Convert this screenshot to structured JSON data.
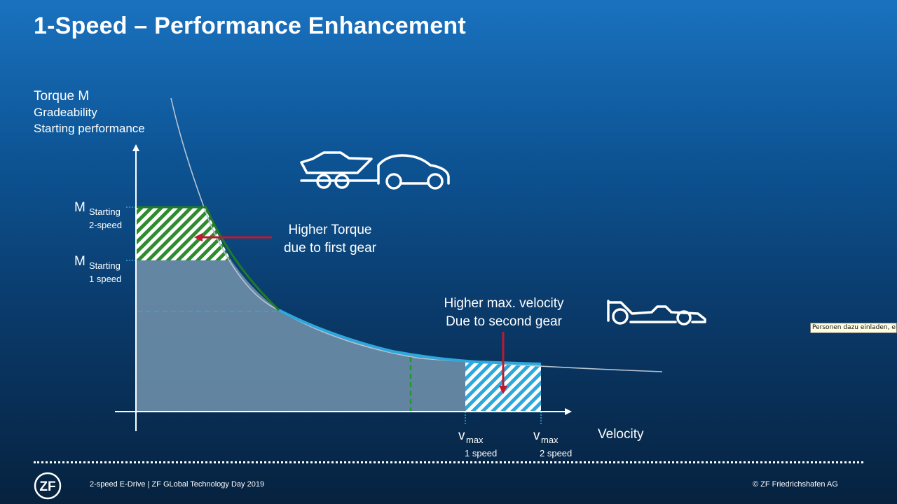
{
  "slide": {
    "title": "1-Speed – Performance Enhancement"
  },
  "diagram": {
    "y_axis_label": [
      "Torque M",
      "Gradeability",
      "Starting performance"
    ],
    "x_axis_label": "Velocity",
    "m_starting_2speed": {
      "symbol": "M",
      "sub1": "Starting",
      "sub2": "2-speed"
    },
    "m_starting_1speed": {
      "symbol": "M",
      "sub1": "Starting",
      "sub2": "1 speed"
    },
    "vmax_1speed": {
      "symbol": "v",
      "sub": "max",
      "caption": "1 speed"
    },
    "vmax_2speed": {
      "symbol": "v",
      "sub": "max",
      "caption": "2 speed"
    },
    "annotation_torque": [
      "Higher Torque",
      "due to first gear"
    ],
    "annotation_velocity": [
      "Higher max. velocity",
      "Due to second gear"
    ],
    "icons": [
      "car-with-trailer-icon",
      "race-car-icon"
    ],
    "colors": {
      "green_area": "#2e8b2e",
      "blue_area": "#2ea8dc",
      "arrow": "#c0182d",
      "base_area": "#6d8ea8"
    }
  },
  "tooltip": {
    "text": "Personen dazu einladen, eine"
  },
  "footer": {
    "left": "2-speed E-Drive | ZF GLobal Technology Day 2019",
    "right": "© ZF Friedrichshafen AG",
    "logo_text": "ZF"
  }
}
